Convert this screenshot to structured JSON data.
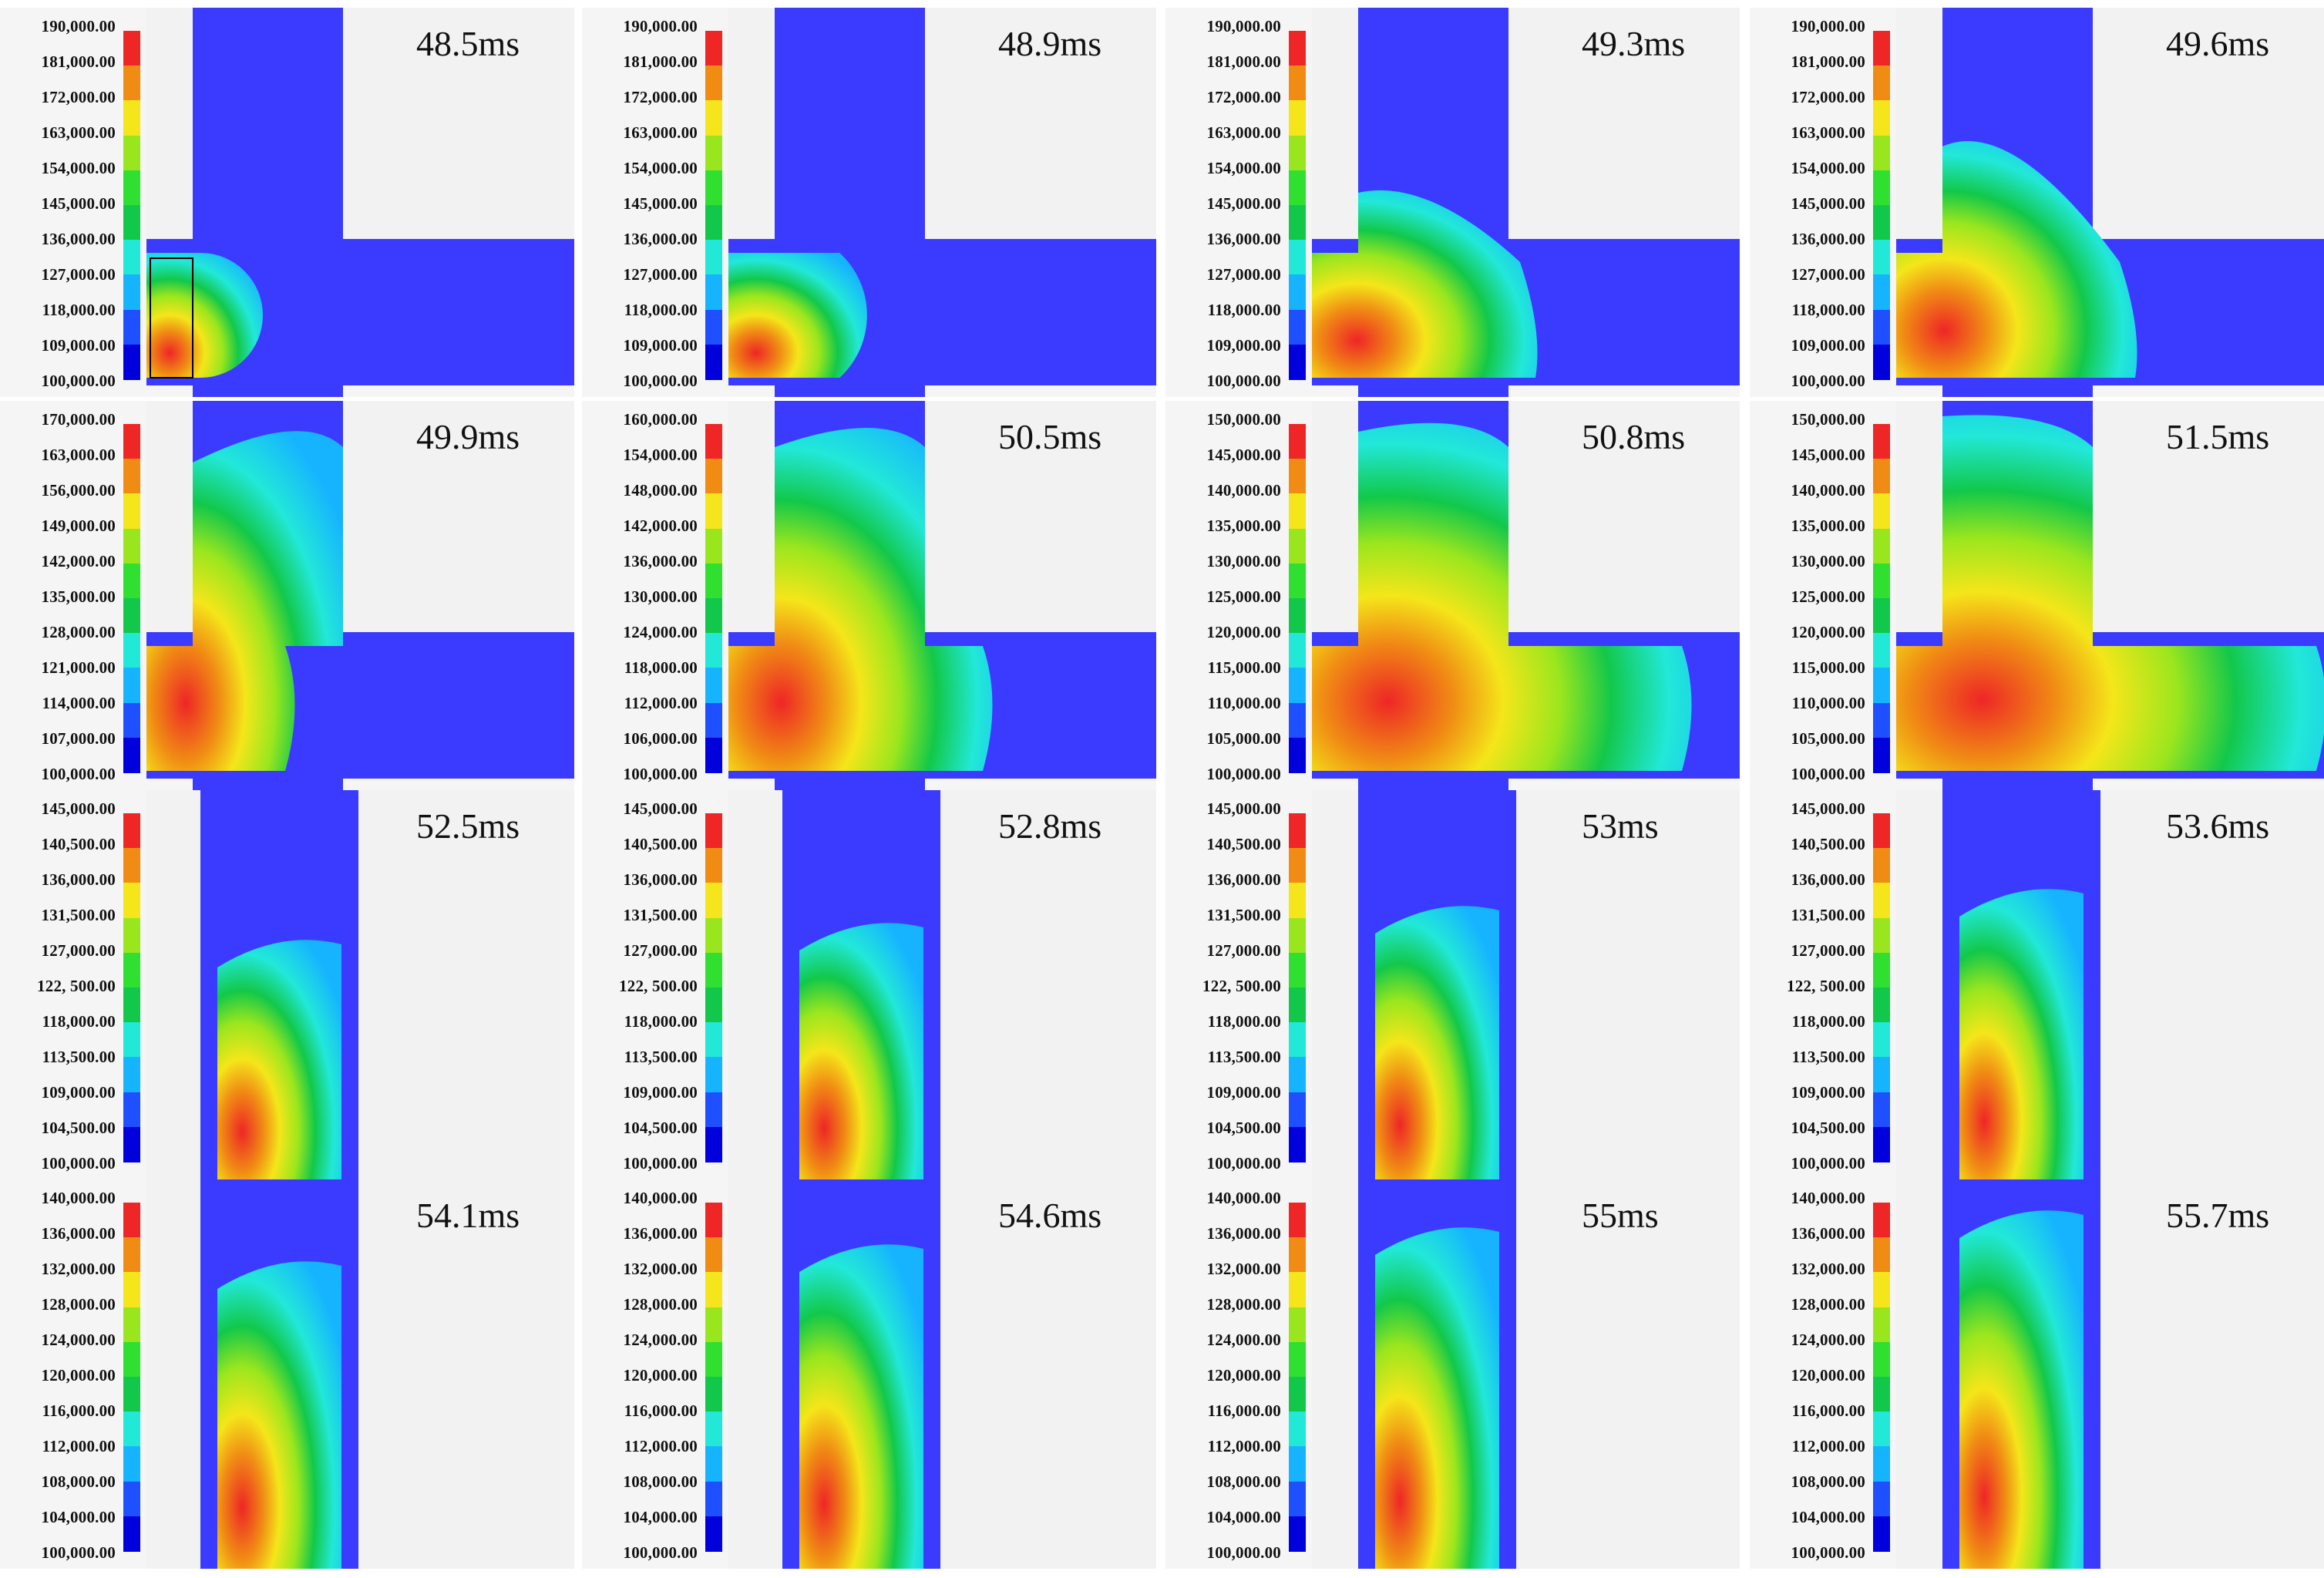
{
  "colorbar": {
    "colors": [
      "#0000dd",
      "#1e50ff",
      "#16b4ff",
      "#22e8d8",
      "#12c84a",
      "#30e030",
      "#9ae61e",
      "#f4e61a",
      "#f08c14",
      "#ee2626"
    ],
    "domain_colors": {
      "background": "#3b3bff",
      "wall_region": "#f2f2f2",
      "hot": "#ee2626"
    }
  },
  "panels": [
    {
      "time": "48.5ms",
      "ticks": [
        "190,000.00",
        "181,000.00",
        "172,000.00",
        "163,000.00",
        "154,000.00",
        "145,000.00",
        "136,000.00",
        "127,000.00",
        "118,000.00",
        "109,000.00",
        "100,000.00"
      ]
    },
    {
      "time": "48.9ms",
      "ticks": [
        "190,000.00",
        "181,000.00",
        "172,000.00",
        "163,000.00",
        "154,000.00",
        "145,000.00",
        "136,000.00",
        "127,000.00",
        "118,000.00",
        "109,000.00",
        "100,000.00"
      ]
    },
    {
      "time": "49.3ms",
      "ticks": [
        "190,000.00",
        "181,000.00",
        "172,000.00",
        "163,000.00",
        "154,000.00",
        "145,000.00",
        "136,000.00",
        "127,000.00",
        "118,000.00",
        "109,000.00",
        "100,000.00"
      ]
    },
    {
      "time": "49.6ms",
      "ticks": [
        "190,000.00",
        "181,000.00",
        "172,000.00",
        "163,000.00",
        "154,000.00",
        "145,000.00",
        "136,000.00",
        "127,000.00",
        "118,000.00",
        "109,000.00",
        "100,000.00"
      ]
    },
    {
      "time": "49.9ms",
      "ticks": [
        "170,000.00",
        "163,000.00",
        "156,000.00",
        "149,000.00",
        "142,000.00",
        "135,000.00",
        "128,000.00",
        "121,000.00",
        "114,000.00",
        "107,000.00",
        "100,000.00"
      ]
    },
    {
      "time": "50.5ms",
      "ticks": [
        "160,000.00",
        "154,000.00",
        "148,000.00",
        "142,000.00",
        "136,000.00",
        "130,000.00",
        "124,000.00",
        "118,000.00",
        "112,000.00",
        "106,000.00",
        "100,000.00"
      ]
    },
    {
      "time": "50.8ms",
      "ticks": [
        "150,000.00",
        "145,000.00",
        "140,000.00",
        "135,000.00",
        "130,000.00",
        "125,000.00",
        "120,000.00",
        "115,000.00",
        "110,000.00",
        "105,000.00",
        "100,000.00"
      ]
    },
    {
      "time": "51.5ms",
      "ticks": [
        "150,000.00",
        "145,000.00",
        "140,000.00",
        "135,000.00",
        "130,000.00",
        "125,000.00",
        "120,000.00",
        "115,000.00",
        "110,000.00",
        "105,000.00",
        "100,000.00"
      ]
    },
    {
      "time": "52.5ms",
      "ticks": [
        "145,000.00",
        "140,500.00",
        "136,000.00",
        "131,500.00",
        "127,000.00",
        "122, 500.00",
        "118,000.00",
        "113,500.00",
        "109,000.00",
        "104,500.00",
        "100,000.00"
      ]
    },
    {
      "time": "52.8ms",
      "ticks": [
        "145,000.00",
        "140,500.00",
        "136,000.00",
        "131,500.00",
        "127,000.00",
        "122, 500.00",
        "118,000.00",
        "113,500.00",
        "109,000.00",
        "104,500.00",
        "100,000.00"
      ]
    },
    {
      "time": "53ms",
      "ticks": [
        "145,000.00",
        "140,500.00",
        "136,000.00",
        "131,500.00",
        "127,000.00",
        "122, 500.00",
        "118,000.00",
        "113,500.00",
        "109,000.00",
        "104,500.00",
        "100,000.00"
      ]
    },
    {
      "time": "53.6ms",
      "ticks": [
        "145,000.00",
        "140,500.00",
        "136,000.00",
        "131,500.00",
        "127,000.00",
        "122, 500.00",
        "118,000.00",
        "113,500.00",
        "109,000.00",
        "104,500.00",
        "100,000.00"
      ]
    },
    {
      "time": "54.1ms",
      "ticks": [
        "140,000.00",
        "136,000.00",
        "132,000.00",
        "128,000.00",
        "124,000.00",
        "120,000.00",
        "116,000.00",
        "112,000.00",
        "108,000.00",
        "104,000.00",
        "100,000.00"
      ]
    },
    {
      "time": "54.6ms",
      "ticks": [
        "140,000.00",
        "136,000.00",
        "132,000.00",
        "128,000.00",
        "124,000.00",
        "120,000.00",
        "116,000.00",
        "112,000.00",
        "108,000.00",
        "104,000.00",
        "100,000.00"
      ]
    },
    {
      "time": "55ms",
      "ticks": [
        "140,000.00",
        "136,000.00",
        "132,000.00",
        "128,000.00",
        "124,000.00",
        "120,000.00",
        "116,000.00",
        "112,000.00",
        "108,000.00",
        "104,000.00",
        "100,000.00"
      ]
    },
    {
      "time": "55.7ms",
      "ticks": [
        "140,000.00",
        "136,000.00",
        "132,000.00",
        "128,000.00",
        "124,000.00",
        "120,000.00",
        "116,000.00",
        "112,000.00",
        "108,000.00",
        "104,000.00",
        "100,000.00"
      ]
    }
  ]
}
